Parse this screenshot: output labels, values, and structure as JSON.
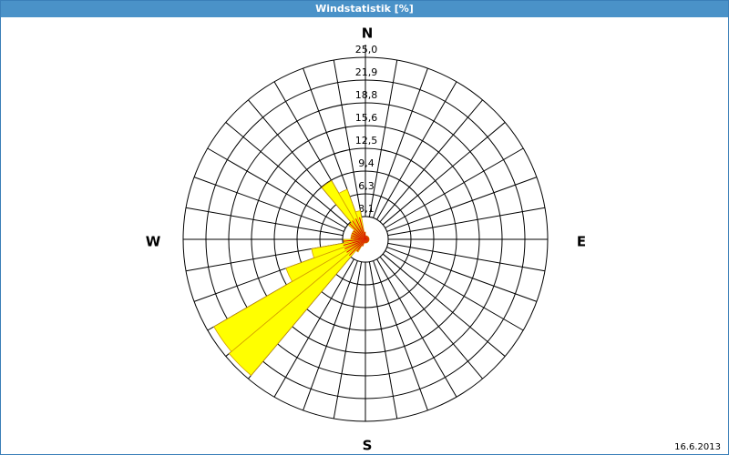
{
  "title": "Windstatistik [%]",
  "date": "16.6.2013",
  "chart_data": {
    "type": "windrose",
    "directions": [
      "N",
      "E",
      "S",
      "W"
    ],
    "x": [
      5,
      15,
      25,
      35,
      45,
      55,
      65,
      75,
      85,
      95,
      105,
      115,
      125,
      135,
      145,
      155,
      165,
      175,
      185,
      195,
      205,
      215,
      225,
      235,
      245,
      255,
      265,
      275,
      285,
      295,
      305,
      315,
      325,
      335,
      345,
      355
    ],
    "values": [
      0.5,
      0.5,
      0.5,
      0.5,
      0.5,
      0.5,
      0.5,
      0.5,
      0.5,
      0.5,
      0.5,
      0.5,
      0.5,
      0.5,
      0.5,
      0.5,
      0.5,
      0.5,
      0.5,
      0.5,
      1,
      2,
      24.4,
      24,
      11.6,
      7.5,
      3,
      2,
      2,
      2,
      2,
      3,
      9.3,
      7.3,
      4,
      1
    ],
    "color": "#ffff00",
    "ylim": [
      0,
      25
    ],
    "yticks": [
      {
        "value": 3.125,
        "label": "3,1"
      },
      {
        "value": 6.25,
        "label": "6,3"
      },
      {
        "value": 9.375,
        "label": "9,4"
      },
      {
        "value": 12.5,
        "label": "12,5"
      },
      {
        "value": 15.625,
        "label": "15,6"
      },
      {
        "value": 18.75,
        "label": "18,8"
      },
      {
        "value": 21.875,
        "label": "21,9"
      },
      {
        "value": 25,
        "label": "25,0"
      }
    ]
  }
}
